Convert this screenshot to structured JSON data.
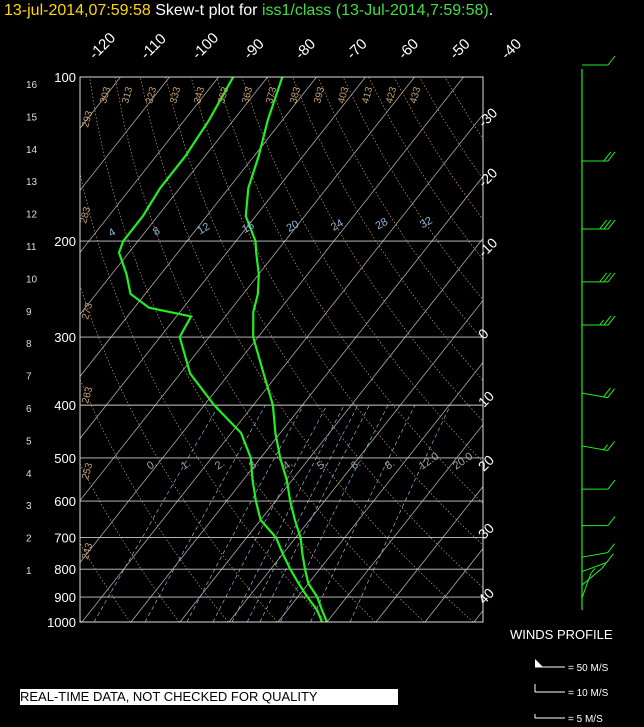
{
  "header": {
    "datetime": "13-jul-2014,07:59:58",
    "prefix": " Skew-t plot for ",
    "station": "iss1/class (13-Jul-2014,7:59:58)",
    "suffix": "."
  },
  "disclaimer": "REAL-TIME DATA, NOT CHECKED FOR QUALITY",
  "winds_profile": {
    "title": "WINDS PROFILE",
    "legend": [
      "= 50 M/S",
      "= 10 M/S",
      "= 5 M/S"
    ]
  },
  "colors": {
    "sounding": "#22ee22",
    "header_date": "#ffd700",
    "isobars": "#cccccc",
    "isotherms": "#aaaaaa",
    "dry_adiabats": "#c8a070",
    "mixing_ratio": "#8ab4d8"
  },
  "chart_data": {
    "type": "line",
    "title": "Skew-t plot",
    "pressure_levels": [
      100,
      200,
      300,
      400,
      500,
      600,
      700,
      800,
      900,
      1000
    ],
    "left_axis_km": [
      "16",
      "15",
      "14",
      "13",
      "12",
      "11",
      "10",
      "9",
      "8",
      "7",
      "6",
      "5",
      "4",
      "3",
      "2",
      "1"
    ],
    "top_temperature_labels": [
      "-120",
      "-110",
      "-100",
      "-90",
      "-80",
      "-70",
      "-60",
      "-50",
      "-40"
    ],
    "right_temperature_labels": [
      "-30",
      "-20",
      "-10",
      "0",
      "10",
      "20",
      "30",
      "40"
    ],
    "potential_temperature_labels": [
      "293",
      "303",
      "313",
      "323",
      "333",
      "343",
      "353",
      "363",
      "373",
      "383",
      "393",
      "403",
      "413",
      "423",
      "433",
      "283",
      "273",
      "263",
      "253",
      "243"
    ],
    "mixing_ratio_labels": [
      "4",
      "8",
      "12",
      "16",
      "20",
      "24",
      "28",
      "32"
    ],
    "lower_mixing_ratio_labels": [
      "0.",
      "1.",
      "2.",
      "3.",
      "4.",
      "5.",
      "6.",
      "8.",
      "12.0",
      "20.0"
    ],
    "series": [
      {
        "name": "temperature",
        "points": [
          [
            1000,
            20
          ],
          [
            950,
            17
          ],
          [
            900,
            14
          ],
          [
            850,
            10
          ],
          [
            800,
            7
          ],
          [
            750,
            4
          ],
          [
            700,
            1
          ],
          [
            650,
            -3
          ],
          [
            600,
            -7
          ],
          [
            550,
            -11
          ],
          [
            500,
            -16
          ],
          [
            450,
            -21
          ],
          [
            400,
            -26
          ],
          [
            350,
            -33
          ],
          [
            300,
            -41
          ],
          [
            270,
            -45
          ],
          [
            250,
            -47
          ],
          [
            230,
            -50
          ],
          [
            210,
            -54
          ],
          [
            200,
            -56
          ],
          [
            180,
            -62
          ],
          [
            160,
            -66
          ],
          [
            140,
            -69
          ],
          [
            120,
            -73
          ],
          [
            100,
            -77
          ]
        ]
      },
      {
        "name": "dewpoint",
        "points": [
          [
            1000,
            19
          ],
          [
            950,
            16
          ],
          [
            900,
            12
          ],
          [
            850,
            8
          ],
          [
            800,
            4
          ],
          [
            750,
            0
          ],
          [
            700,
            -4
          ],
          [
            650,
            -10
          ],
          [
            600,
            -14
          ],
          [
            550,
            -18
          ],
          [
            500,
            -22
          ],
          [
            450,
            -28
          ],
          [
            400,
            -38
          ],
          [
            350,
            -48
          ],
          [
            300,
            -56
          ],
          [
            275,
            -57
          ],
          [
            265,
            -67
          ],
          [
            250,
            -73
          ],
          [
            230,
            -77
          ],
          [
            210,
            -82
          ],
          [
            200,
            -83
          ],
          [
            180,
            -83
          ],
          [
            160,
            -84
          ],
          [
            140,
            -84
          ],
          [
            120,
            -85
          ],
          [
            100,
            -87
          ]
        ]
      }
    ],
    "winds": [
      {
        "p": 1000,
        "spd": 3,
        "dir": 180
      },
      {
        "p": 950,
        "spd": 5,
        "dir": 200
      },
      {
        "p": 900,
        "spd": 8,
        "dir": 230
      },
      {
        "p": 850,
        "spd": 10,
        "dir": 250
      },
      {
        "p": 800,
        "spd": 12,
        "dir": 260
      },
      {
        "p": 700,
        "spd": 12,
        "dir": 270
      },
      {
        "p": 600,
        "spd": 14,
        "dir": 270
      },
      {
        "p": 500,
        "spd": 15,
        "dir": 280
      },
      {
        "p": 400,
        "spd": 20,
        "dir": 280
      },
      {
        "p": 300,
        "spd": 28,
        "dir": 270
      },
      {
        "p": 250,
        "spd": 33,
        "dir": 270
      },
      {
        "p": 200,
        "spd": 30,
        "dir": 270
      },
      {
        "p": 150,
        "spd": 22,
        "dir": 270
      },
      {
        "p": 100,
        "spd": 12,
        "dir": 270
      }
    ]
  }
}
